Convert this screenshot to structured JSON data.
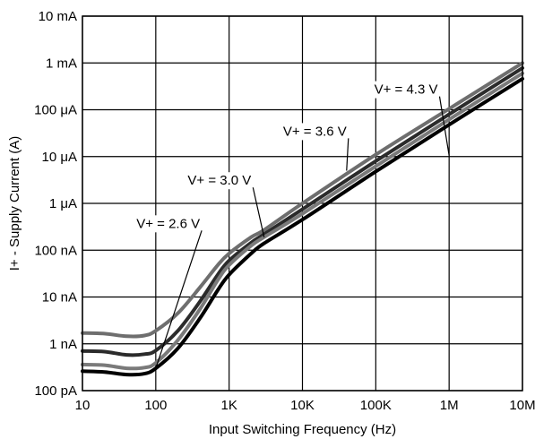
{
  "chart_data": {
    "type": "line",
    "title": "",
    "xlabel": "Input Switching Frequency (Hz)",
    "ylabel": "I+ - Supply Current (A)",
    "xscale": "log",
    "yscale": "log",
    "xlim": [
      10,
      10000000
    ],
    "ylim": [
      1e-10,
      0.01
    ],
    "grid": true,
    "x_ticks": [
      {
        "value": 10,
        "label": "10"
      },
      {
        "value": 100,
        "label": "100"
      },
      {
        "value": 1000,
        "label": "1K"
      },
      {
        "value": 10000,
        "label": "10K"
      },
      {
        "value": 100000,
        "label": "100K"
      },
      {
        "value": 1000000,
        "label": "1M"
      },
      {
        "value": 10000000,
        "label": "10M"
      }
    ],
    "y_ticks": [
      {
        "value": 1e-10,
        "label": "100 pA"
      },
      {
        "value": 1e-09,
        "label": "1 nA"
      },
      {
        "value": 1e-08,
        "label": "10 nA"
      },
      {
        "value": 1e-07,
        "label": "100 nA"
      },
      {
        "value": 1e-06,
        "label": "1 μA"
      },
      {
        "value": 1e-05,
        "label": "10 μA"
      },
      {
        "value": 0.0001,
        "label": "100 μA"
      },
      {
        "value": 0.001,
        "label": "1 mA"
      },
      {
        "value": 0.01,
        "label": "10 mA"
      }
    ],
    "series": [
      {
        "name": "V+ = 4.3 V",
        "color": "#6e6e6e",
        "points": [
          [
            10,
            1.7e-09
          ],
          [
            20,
            1.65e-09
          ],
          [
            40,
            1.45e-09
          ],
          [
            70,
            1.5e-09
          ],
          [
            100,
            1.9e-09
          ],
          [
            200,
            4.5e-09
          ],
          [
            400,
            1.6e-08
          ],
          [
            700,
            4.8e-08
          ],
          [
            1000,
            8.5e-08
          ],
          [
            2000,
            1.9e-07
          ],
          [
            3000,
            2.7e-07
          ],
          [
            10000,
            1e-06
          ],
          [
            100000,
            1.1e-05
          ],
          [
            1000000,
            0.000105
          ],
          [
            10000000,
            0.001
          ]
        ]
      },
      {
        "name": "V+ = 3.6 V",
        "color": "#2b2b2b",
        "points": [
          [
            10,
            7e-10
          ],
          [
            20,
            6.8e-10
          ],
          [
            40,
            5.8e-10
          ],
          [
            70,
            6e-10
          ],
          [
            100,
            7.2e-10
          ],
          [
            200,
            1.9e-09
          ],
          [
            400,
            8e-09
          ],
          [
            700,
            3e-08
          ],
          [
            1000,
            6e-08
          ],
          [
            2000,
            1.45e-07
          ],
          [
            3000,
            2.2e-07
          ],
          [
            10000,
            7.5e-07
          ],
          [
            100000,
            8e-06
          ],
          [
            1000000,
            8e-05
          ],
          [
            10000000,
            0.00078
          ]
        ]
      },
      {
        "name": "V+ = 3.0 V",
        "color": "#7a7a7a",
        "points": [
          [
            10,
            3.6e-10
          ],
          [
            20,
            3.5e-10
          ],
          [
            40,
            3e-10
          ],
          [
            70,
            3.1e-10
          ],
          [
            100,
            3.9e-10
          ],
          [
            200,
            1.2e-09
          ],
          [
            400,
            5.5e-09
          ],
          [
            700,
            2.3e-08
          ],
          [
            1000,
            4.8e-08
          ],
          [
            2000,
            1.25e-07
          ],
          [
            3000,
            1.9e-07
          ],
          [
            10000,
            6e-07
          ],
          [
            100000,
            6.2e-06
          ],
          [
            1000000,
            6.2e-05
          ],
          [
            10000000,
            0.0006
          ]
        ]
      },
      {
        "name": "V+ = 2.6 V",
        "color": "#000000",
        "points": [
          [
            10,
            2.6e-10
          ],
          [
            20,
            2.5e-10
          ],
          [
            40,
            2.2e-10
          ],
          [
            70,
            2.3e-10
          ],
          [
            100,
            3e-10
          ],
          [
            200,
            8e-10
          ],
          [
            400,
            3.5e-09
          ],
          [
            700,
            1.4e-08
          ],
          [
            1000,
            3e-08
          ],
          [
            2000,
            8.5e-08
          ],
          [
            3000,
            1.4e-07
          ],
          [
            10000,
            4.5e-07
          ],
          [
            100000,
            4.8e-06
          ],
          [
            1000000,
            4.8e-05
          ],
          [
            10000000,
            0.00046
          ]
        ]
      }
    ],
    "annotations": [
      {
        "text": "V+ = 4.3 V",
        "text_x": 700000,
        "text_y": 0.00022,
        "anchor": "end",
        "target_x": 1000000,
        "target_y": 1.05e-05
      },
      {
        "text": "V+ = 3.6 V",
        "text_x": 40000,
        "text_y": 2.8e-05,
        "anchor": "end",
        "target_x": 40000,
        "target_y": 5e-06
      },
      {
        "text": "V+ = 3.0 V",
        "text_x": 2000,
        "text_y": 2.5e-06,
        "anchor": "end",
        "target_x": 3000,
        "target_y": 1.9e-07
      },
      {
        "text": "V+ = 2.6 V",
        "text_x": 400,
        "text_y": 3e-07,
        "anchor": "end",
        "target_x": 100,
        "target_y": 3e-10
      }
    ]
  }
}
